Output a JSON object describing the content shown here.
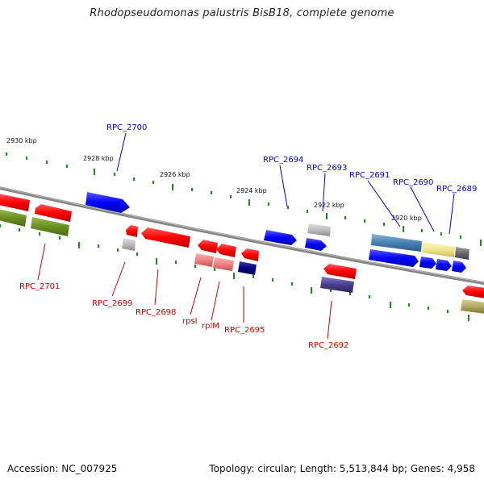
{
  "title": "Rhodopseudomonas palustris BisB18, complete genome",
  "footer": {
    "accession": "Accession: NC_007925",
    "summary": "Topology: circular; Length: 5,513,844 bp; Genes: 4,958"
  },
  "colors": {
    "backbone": "#808080",
    "tick": "#1a8c1a",
    "label_plus": "#0000cc",
    "label_minus": "#cc0000",
    "gene_red": "#ff0000",
    "gene_blue": "#0000ff",
    "gene_gray": "#b0b0b0",
    "gene_olive": "#6b8e23",
    "gene_navy": "#000080",
    "gene_pink": "#f08080",
    "gene_steelblue": "#4682b4",
    "gene_khaki": "#f0e68c",
    "gene_darkgray": "#696969",
    "gene_slate": "#483d8b"
  },
  "scale_labels": [
    "2930 kbp",
    "2928 kbp",
    "2926 kbp",
    "2924 kbp",
    "2922 kbp",
    "2920 kbp"
  ],
  "gene_labels_plus": [
    "RPC_2700",
    "RPC_2694",
    "RPC_2693",
    "RPC_2691",
    "RPC_2690",
    "RPC_2689"
  ],
  "gene_labels_minus": [
    "RPC_2701",
    "RPC_2699",
    "RPC_2698",
    "rpsI",
    "rplM",
    "RPC_2695",
    "RPC_2692"
  ]
}
